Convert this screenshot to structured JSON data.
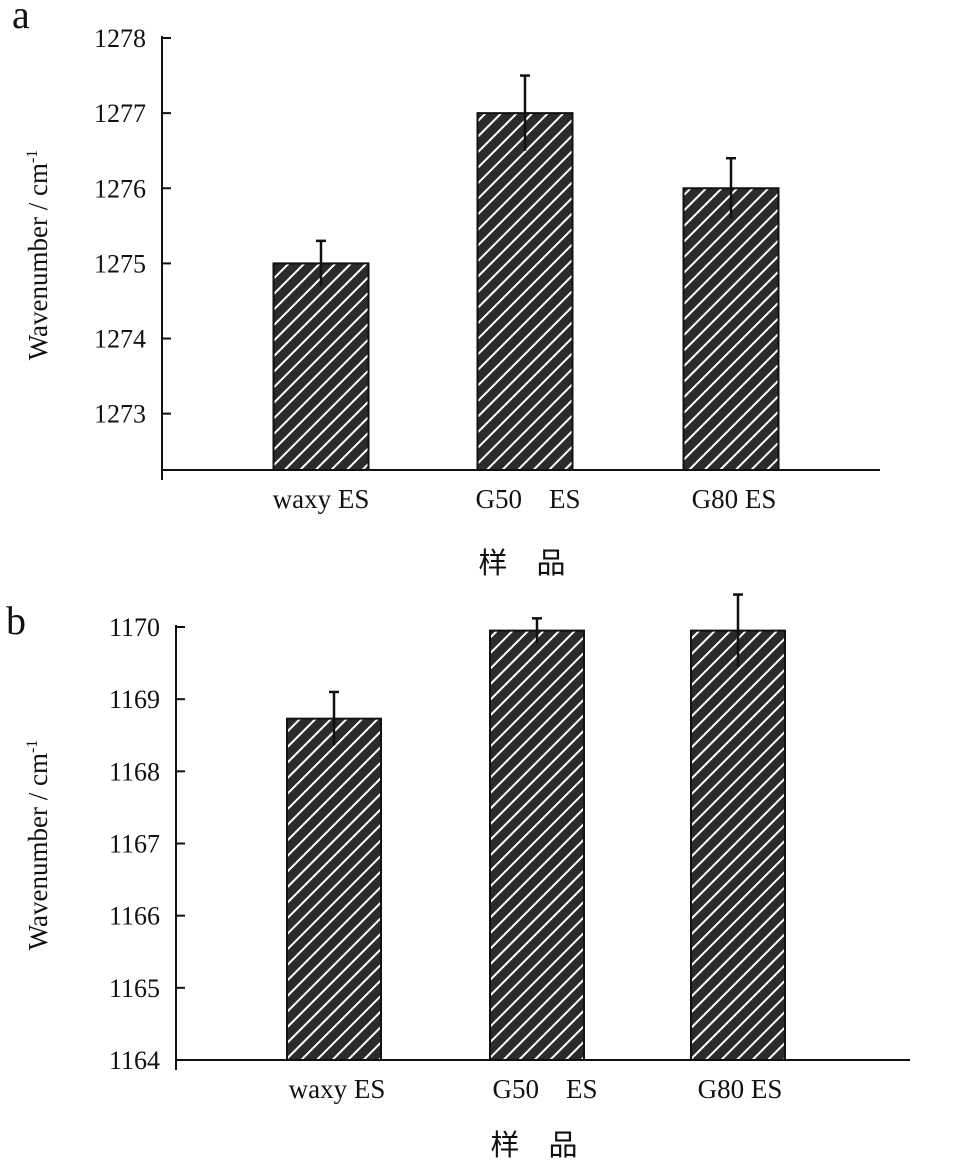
{
  "colors": {
    "bar": "#2b2b2b",
    "stripe": "#ffffff",
    "axis": "#111111",
    "errorbar": "#111111"
  },
  "chart_data": [
    {
      "type": "bar",
      "panel_label": "a",
      "categories": [
        "waxy ES",
        "G50    ES",
        "G80 ES"
      ],
      "values": [
        1275.0,
        1277.0,
        1276.0
      ],
      "errors": [
        0.3,
        0.5,
        0.4
      ],
      "ylabel": "Wavenumber / cm-1",
      "xlabel": "样    品",
      "ylim": [
        1272.25,
        1278
      ],
      "yticks": [
        "1278",
        "1277",
        "1276",
        "1275",
        "1274",
        "1273"
      ],
      "ytick_values": [
        1278,
        1277,
        1276,
        1275,
        1274,
        1273
      ],
      "pattern": "diagonal-hatch",
      "grid": false,
      "legend": "none"
    },
    {
      "type": "bar",
      "panel_label": "b",
      "categories": [
        "waxy ES",
        "G50    ES",
        "G80 ES"
      ],
      "values": [
        1168.73,
        1169.95,
        1169.95
      ],
      "errors": [
        0.37,
        0.17,
        0.5
      ],
      "ylabel": "Wavenumber / cm-1",
      "xlabel": "样    品",
      "ylim": [
        1164,
        1170
      ],
      "yticks": [
        "1170",
        "1169",
        "1168",
        "1167",
        "1166",
        "1165",
        "1164"
      ],
      "ytick_values": [
        1170,
        1169,
        1168,
        1167,
        1166,
        1165,
        1164
      ],
      "pattern": "diagonal-hatch",
      "grid": false,
      "legend": "none"
    }
  ]
}
